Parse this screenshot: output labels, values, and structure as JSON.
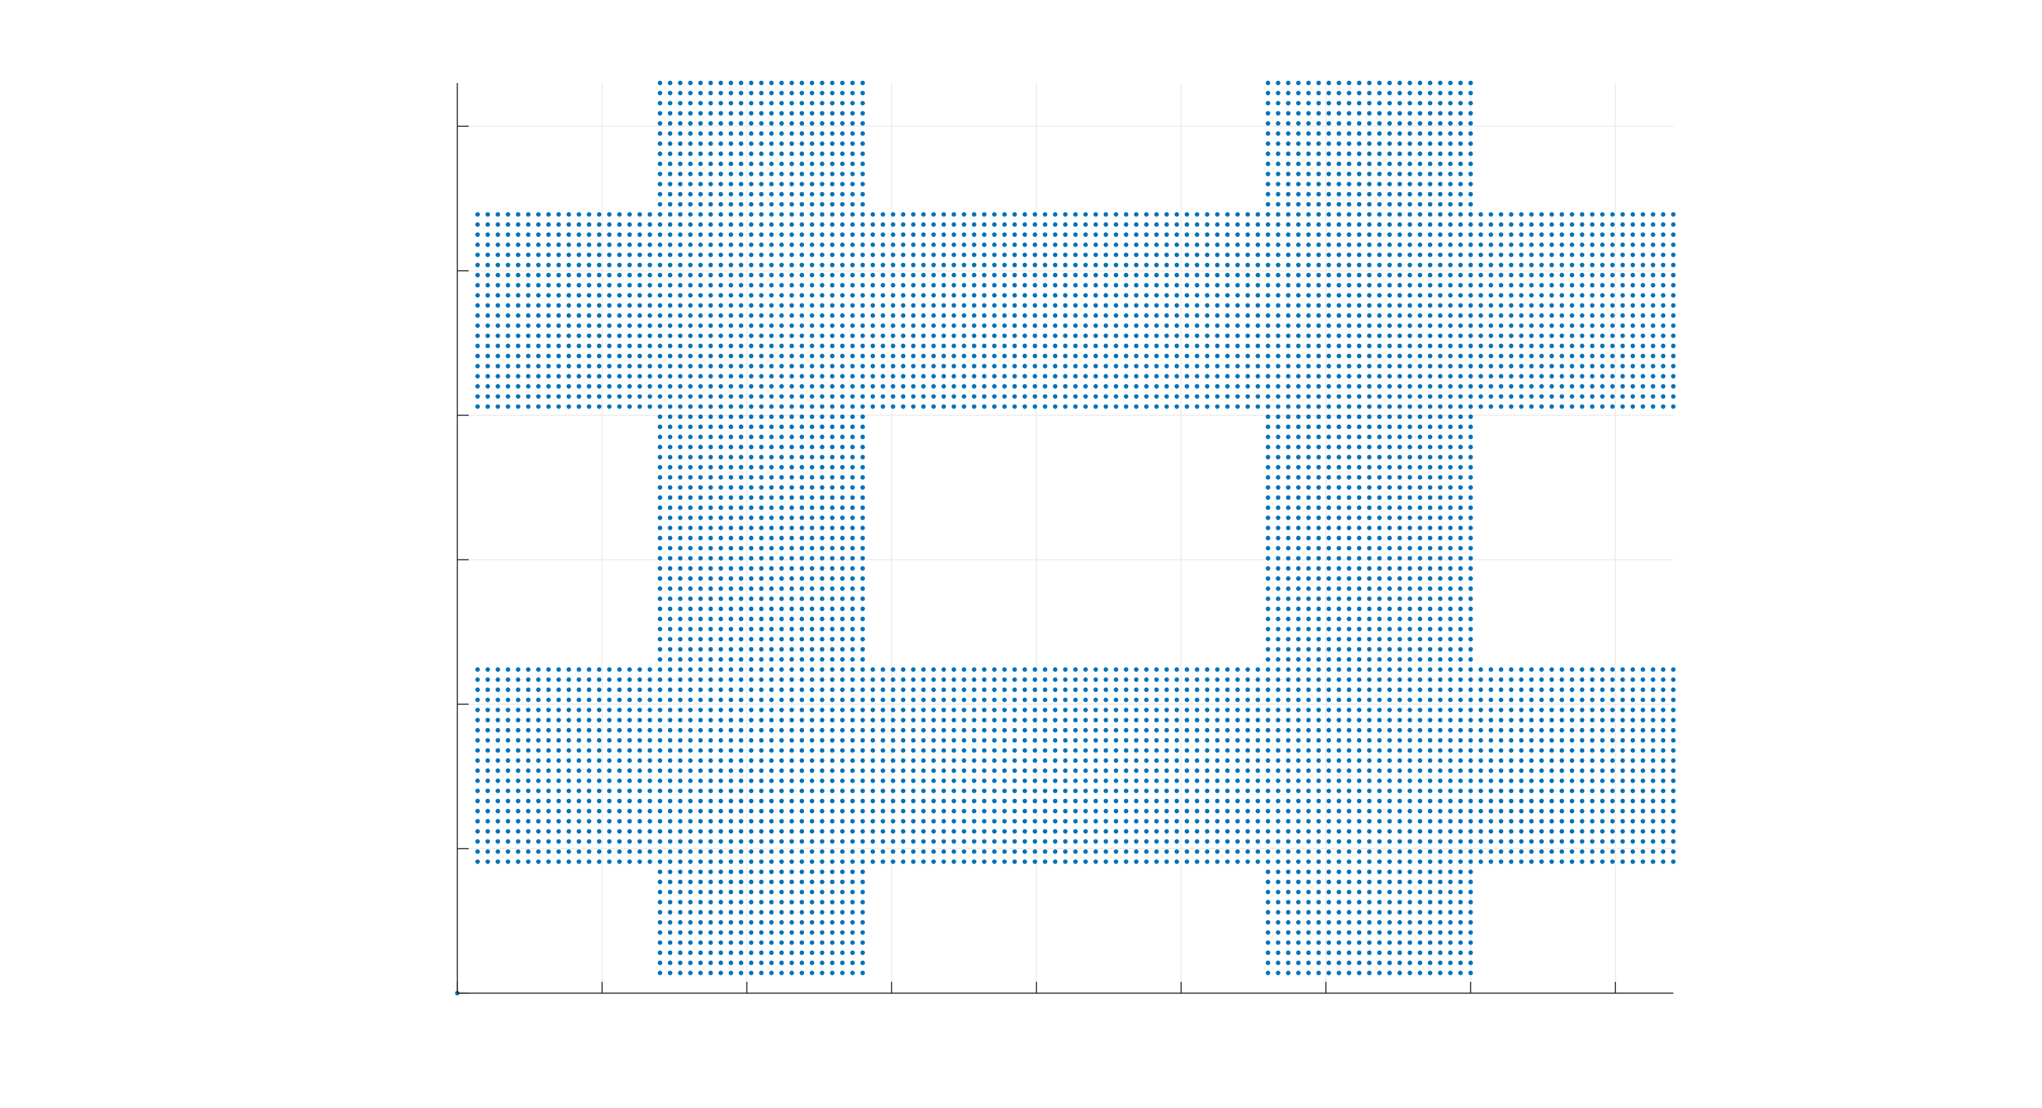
{
  "chart_data": {
    "type": "scatter",
    "title": "",
    "xlabel": "",
    "ylabel": "",
    "xlim": [
      0,
      8.4
    ],
    "ylim": [
      0,
      6.3
    ],
    "x_ticks": [
      0,
      1,
      2,
      3,
      4,
      5,
      6,
      7,
      8
    ],
    "y_ticks": [
      0,
      1,
      2,
      3,
      4,
      5,
      6
    ],
    "x_tick_labels": [],
    "y_tick_labels": [],
    "grid": true,
    "marker_color": "#0072bd",
    "grid_color": "#ebebeb",
    "axis_color": "#262626",
    "point_spacing": 0.07,
    "regions": [
      {
        "name": "",
        "x": [
          0.1,
          8.4
        ],
        "y": [
          4.0,
          5.4
        ]
      },
      {
        "name": "",
        "x": [
          0.1,
          8.4
        ],
        "y": [
          0.9,
          2.3
        ]
      },
      {
        "name": "",
        "x": [
          1.4,
          2.8
        ],
        "y": [
          0.1,
          6.3
        ]
      },
      {
        "name": "",
        "x": [
          5.6,
          7.0
        ],
        "y": [
          0.1,
          6.3
        ]
      }
    ],
    "series": [
      {
        "values_description_note": ""
      }
    ]
  }
}
